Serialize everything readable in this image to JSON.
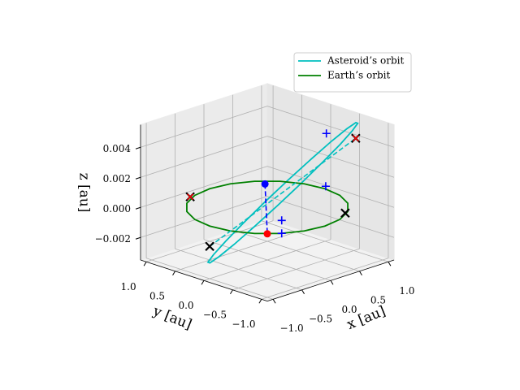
{
  "chart_data": {
    "type": "line3d",
    "xlabel": "x [au]",
    "ylabel": "y [au]",
    "zlabel": "z [au]",
    "xlim": [
      -1.1,
      1.1
    ],
    "ylim": [
      -1.1,
      1.1
    ],
    "zlim": [
      -0.0035,
      0.0055
    ],
    "xticks": [
      {
        "value": -1,
        "label": "−1.0"
      },
      {
        "value": -0.5,
        "label": "−0.5"
      },
      {
        "value": 0,
        "label": "0.0"
      },
      {
        "value": 0.5,
        "label": "0.5"
      },
      {
        "value": 1,
        "label": "1.0"
      }
    ],
    "yticks": [
      {
        "value": -1,
        "label": "−1.0"
      },
      {
        "value": -0.5,
        "label": "−0.5"
      },
      {
        "value": 0,
        "label": "0.0"
      },
      {
        "value": 0.5,
        "label": "0.5"
      },
      {
        "value": 1,
        "label": "1.0"
      }
    ],
    "zticks": [
      {
        "value": -0.002,
        "label": "−0.002"
      },
      {
        "value": 0,
        "label": "0.000"
      },
      0.002,
      0.004
    ],
    "grid": true,
    "legend": "upper right",
    "series": [
      {
        "name": "Asteroid’s orbit",
        "color": "#00bfbf",
        "x": [
          1.0,
          1.018,
          0.946,
          0.791,
          0.568,
          0.3,
          0.012,
          -0.267,
          -0.51,
          -0.694,
          -0.8,
          -0.818,
          -0.746,
          -0.591,
          -0.368,
          -0.1,
          0.188,
          0.467,
          0.71,
          0.894
        ],
        "y": [
          -0.57,
          -0.457,
          -0.318,
          -0.162,
          -0.009,
          0.13,
          0.239,
          0.308,
          0.33,
          0.303,
          0.23,
          0.117,
          -0.022,
          -0.178,
          -0.331,
          -0.47,
          -0.579,
          -0.648,
          -0.67,
          -0.643
        ],
        "z": [
          0.00506,
          0.0044,
          0.00341,
          0.0022,
          0.00087,
          -0.00044,
          -0.0016,
          -0.00251,
          -0.00306,
          -0.00321,
          -0.00294,
          -0.00228,
          -0.0013,
          -8e-05,
          0.00125,
          0.00256,
          0.00372,
          0.00463,
          0.00518,
          0.00533
        ]
      },
      {
        "name": "Earth’s orbit",
        "color": "#008000",
        "x": [
          1,
          0.951,
          0.809,
          0.588,
          0.309,
          0,
          -0.309,
          -0.588,
          -0.809,
          -0.951,
          -1,
          -0.951,
          -0.809,
          -0.588,
          -0.309,
          0,
          0.309,
          0.588,
          0.809,
          0.951
        ],
        "y": [
          0,
          0.309,
          0.588,
          0.809,
          0.951,
          1,
          0.951,
          0.809,
          0.588,
          0.309,
          0,
          -0.309,
          -0.588,
          -0.809,
          -0.951,
          -1,
          -0.951,
          -0.809,
          -0.588,
          -0.309
        ],
        "z": [
          0,
          0,
          0,
          0,
          0,
          0,
          0,
          0,
          0,
          0,
          0,
          0,
          0,
          0,
          0,
          0,
          0,
          0,
          0,
          0
        ]
      }
    ],
    "lines": [
      {
        "color": "#00bfbf",
        "style": "dashed",
        "x": [
          -0.739,
          0.605
        ],
        "y": [
          0.261,
          -0.93
        ],
        "z": [
          -0.002,
          0.005
        ]
      },
      {
        "color": "#0000ff",
        "style": "dashed",
        "x": [
          -0.72,
          -0.707
        ],
        "y": [
          -0.68,
          -0.707
        ],
        "z": [
          0.0033,
          0
        ]
      }
    ],
    "markers": [
      {
        "marker": "+",
        "color": "#0000ff",
        "x": [
          0.48,
          0.268,
          -0.57,
          -0.57
        ],
        "y": [
          -0.545,
          -0.746,
          -0.82,
          -0.82
        ],
        "z": [
          0.005,
          0.002,
          0.00086,
          0
        ]
      },
      {
        "marker": "x",
        "color": "#000000",
        "x": [
          -0.739,
          0.524,
          0.605,
          -0.628
        ],
        "y": [
          0.261,
          -0.828,
          -0.93,
          0.71
        ],
        "z": [
          -0.002,
          0,
          0.005,
          0.0006
        ]
      },
      {
        "marker": "x",
        "color": "#ff0000",
        "x": [
          0.605,
          -0.628
        ],
        "y": [
          -0.93,
          0.71
        ],
        "z": [
          0.005,
          0.0006
        ]
      },
      {
        "marker": "o",
        "color": "#0000ff",
        "x": [
          -0.72
        ],
        "y": [
          -0.68
        ],
        "z": [
          0.0033
        ]
      },
      {
        "marker": "o",
        "color": "#ff0000",
        "x": [
          -0.707
        ],
        "y": [
          -0.707
        ],
        "z": [
          0
        ]
      }
    ]
  }
}
